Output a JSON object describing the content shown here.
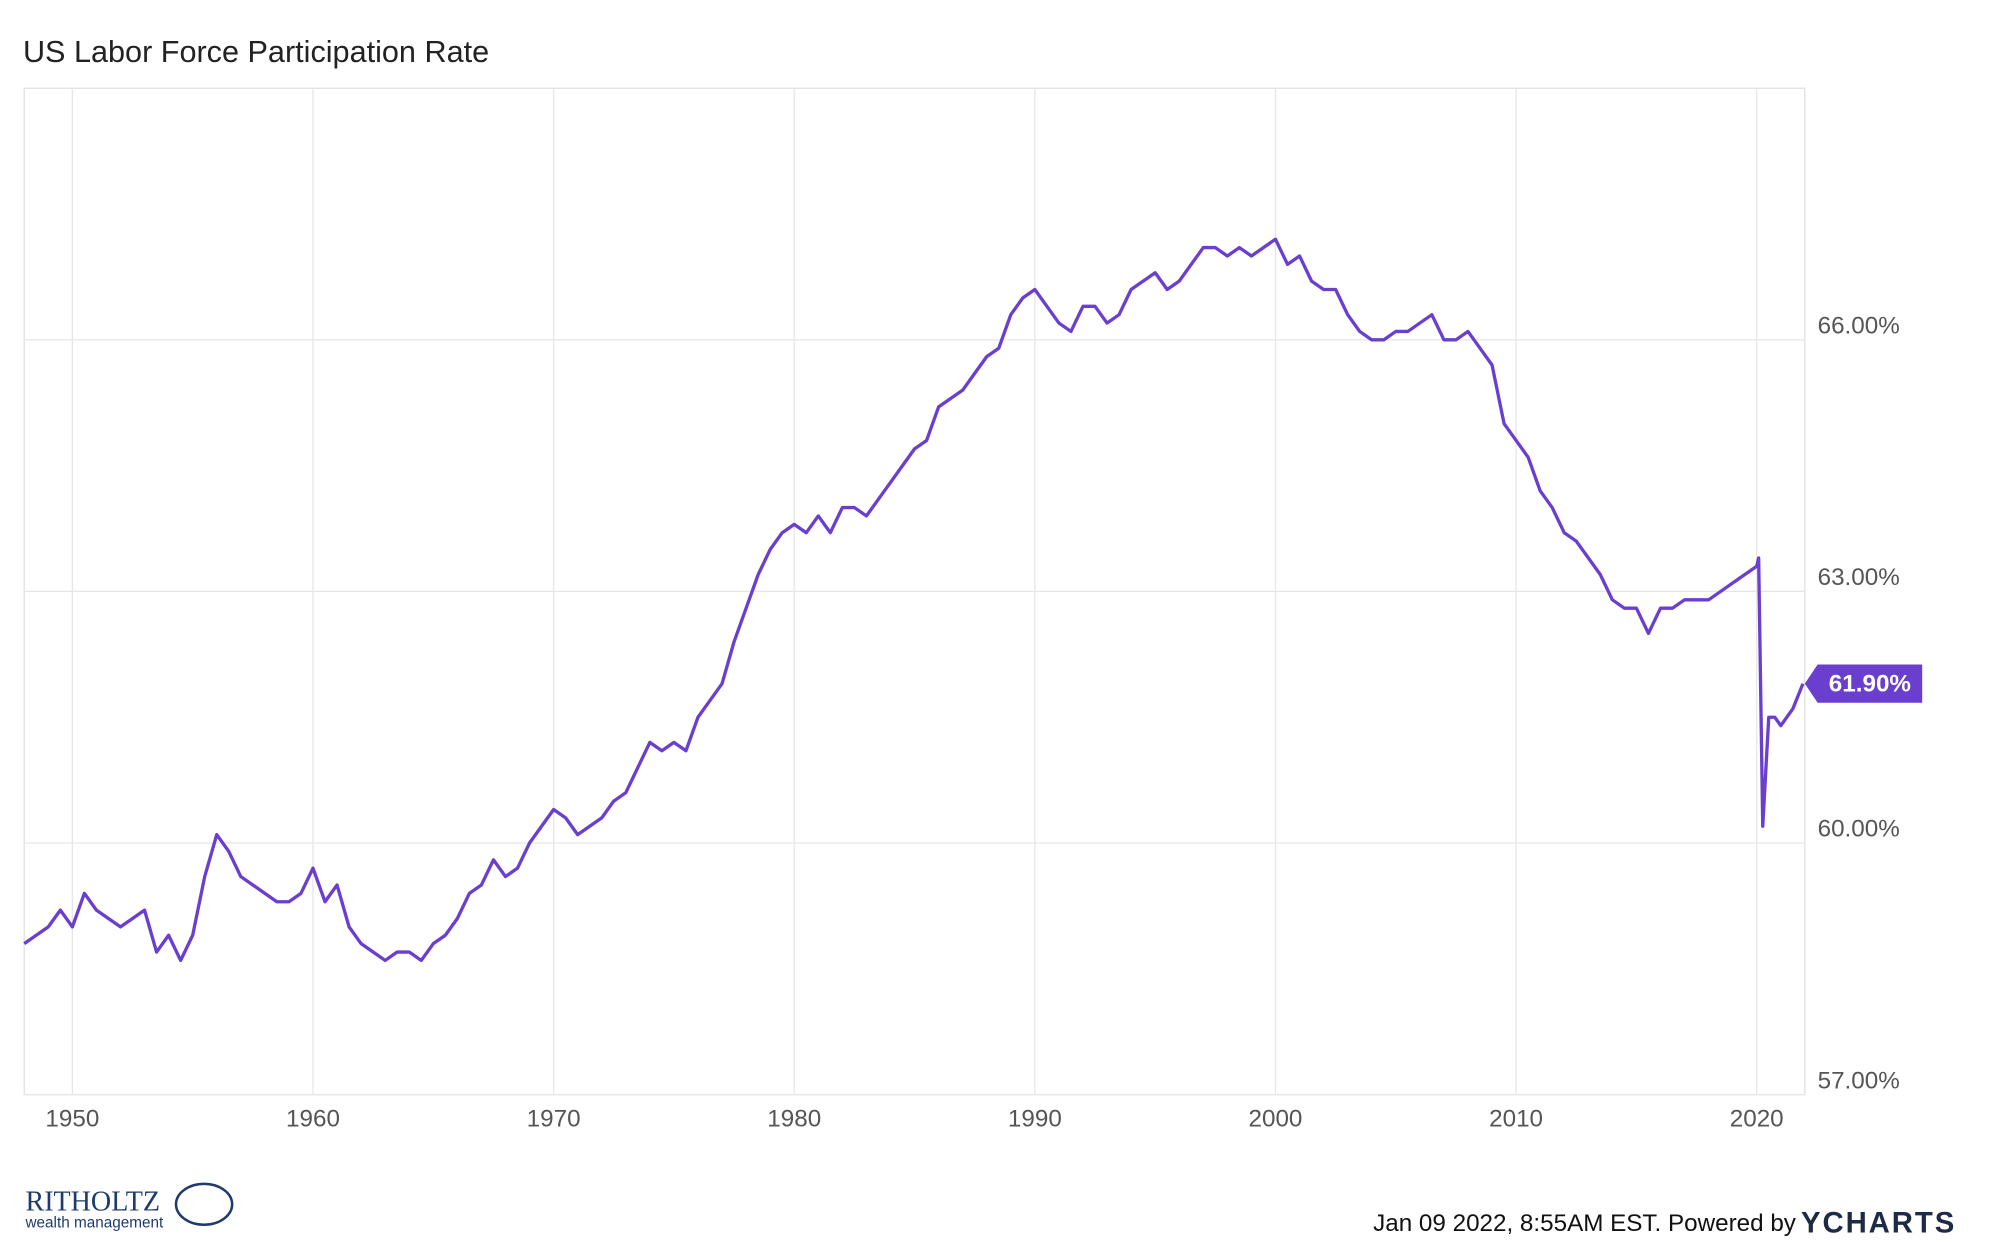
{
  "chart_data": {
    "type": "line",
    "title": "US Labor Force Participation Rate",
    "x": [
      1948.0,
      1948.5,
      1949.0,
      1949.5,
      1950.0,
      1950.5,
      1951.0,
      1951.5,
      1952.0,
      1952.5,
      1953.0,
      1953.5,
      1954.0,
      1954.5,
      1955.0,
      1955.5,
      1956.0,
      1956.5,
      1957.0,
      1957.5,
      1958.0,
      1958.5,
      1959.0,
      1959.5,
      1960.0,
      1960.5,
      1961.0,
      1961.5,
      1962.0,
      1962.5,
      1963.0,
      1963.5,
      1964.0,
      1964.5,
      1965.0,
      1965.5,
      1966.0,
      1966.5,
      1967.0,
      1967.5,
      1968.0,
      1968.5,
      1969.0,
      1969.5,
      1970.0,
      1970.5,
      1971.0,
      1971.5,
      1972.0,
      1972.5,
      1973.0,
      1973.5,
      1974.0,
      1974.5,
      1975.0,
      1975.5,
      1976.0,
      1976.5,
      1977.0,
      1977.5,
      1978.0,
      1978.5,
      1979.0,
      1979.5,
      1980.0,
      1980.5,
      1981.0,
      1981.5,
      1982.0,
      1982.5,
      1983.0,
      1983.5,
      1984.0,
      1984.5,
      1985.0,
      1985.5,
      1986.0,
      1986.5,
      1987.0,
      1987.5,
      1988.0,
      1988.5,
      1989.0,
      1989.5,
      1990.0,
      1990.5,
      1991.0,
      1991.5,
      1992.0,
      1992.5,
      1993.0,
      1993.5,
      1994.0,
      1994.5,
      1995.0,
      1995.5,
      1996.0,
      1996.5,
      1997.0,
      1997.5,
      1998.0,
      1998.5,
      1999.0,
      1999.5,
      2000.0,
      2000.5,
      2001.0,
      2001.5,
      2002.0,
      2002.5,
      2003.0,
      2003.5,
      2004.0,
      2004.5,
      2005.0,
      2005.5,
      2006.0,
      2006.5,
      2007.0,
      2007.5,
      2008.0,
      2008.5,
      2009.0,
      2009.5,
      2010.0,
      2010.5,
      2011.0,
      2011.5,
      2012.0,
      2012.5,
      2013.0,
      2013.5,
      2014.0,
      2014.5,
      2015.0,
      2015.5,
      2016.0,
      2016.5,
      2017.0,
      2017.5,
      2018.0,
      2018.5,
      2019.0,
      2019.5,
      2020.0,
      2020.08,
      2020.25,
      2020.5,
      2020.75,
      2021.0,
      2021.5,
      2021.92
    ],
    "values": [
      58.8,
      58.9,
      59.0,
      59.2,
      59.0,
      59.4,
      59.2,
      59.1,
      59.0,
      59.1,
      59.2,
      58.7,
      58.9,
      58.6,
      58.9,
      59.6,
      60.1,
      59.9,
      59.6,
      59.5,
      59.4,
      59.3,
      59.3,
      59.4,
      59.7,
      59.3,
      59.5,
      59.0,
      58.8,
      58.7,
      58.6,
      58.7,
      58.7,
      58.6,
      58.8,
      58.9,
      59.1,
      59.4,
      59.5,
      59.8,
      59.6,
      59.7,
      60.0,
      60.2,
      60.4,
      60.3,
      60.1,
      60.2,
      60.3,
      60.5,
      60.6,
      60.9,
      61.2,
      61.1,
      61.2,
      61.1,
      61.5,
      61.7,
      61.9,
      62.4,
      62.8,
      63.2,
      63.5,
      63.7,
      63.8,
      63.7,
      63.9,
      63.7,
      64.0,
      64.0,
      63.9,
      64.1,
      64.3,
      64.5,
      64.7,
      64.8,
      65.2,
      65.3,
      65.4,
      65.6,
      65.8,
      65.9,
      66.3,
      66.5,
      66.6,
      66.4,
      66.2,
      66.1,
      66.4,
      66.4,
      66.2,
      66.3,
      66.6,
      66.7,
      66.8,
      66.6,
      66.7,
      66.9,
      67.1,
      67.1,
      67.0,
      67.1,
      67.0,
      67.1,
      67.2,
      66.9,
      67.0,
      66.7,
      66.6,
      66.6,
      66.3,
      66.1,
      66.0,
      66.0,
      66.1,
      66.1,
      66.2,
      66.3,
      66.0,
      66.0,
      66.1,
      65.9,
      65.7,
      65.0,
      64.8,
      64.6,
      64.2,
      64.0,
      63.7,
      63.6,
      63.4,
      63.2,
      62.9,
      62.8,
      62.8,
      62.5,
      62.8,
      62.8,
      62.9,
      62.9,
      62.9,
      63.0,
      63.1,
      63.2,
      63.3,
      63.4,
      60.2,
      61.5,
      61.5,
      61.4,
      61.6,
      61.9
    ],
    "color": "#6a3fcf",
    "xlim": [
      1948,
      2022
    ],
    "xticks": [
      1950,
      1960,
      1970,
      1980,
      1990,
      2000,
      2010,
      2020
    ],
    "ylim": [
      57,
      69
    ],
    "yticks": [
      {
        "value": 57,
        "label": "57.00%"
      },
      {
        "value": 60,
        "label": "60.00%"
      },
      {
        "value": 63,
        "label": "63.00%"
      },
      {
        "value": 66,
        "label": "66.00%"
      }
    ],
    "grid": true,
    "end_label": {
      "value": 61.9,
      "label": "61.90%"
    },
    "footer": {
      "brand": "RITHOLTZ",
      "brand_sub": "wealth management",
      "timestamp": "Jan 09 2022, 8:55AM EST. Powered by",
      "provider": "YCHARTS"
    }
  }
}
